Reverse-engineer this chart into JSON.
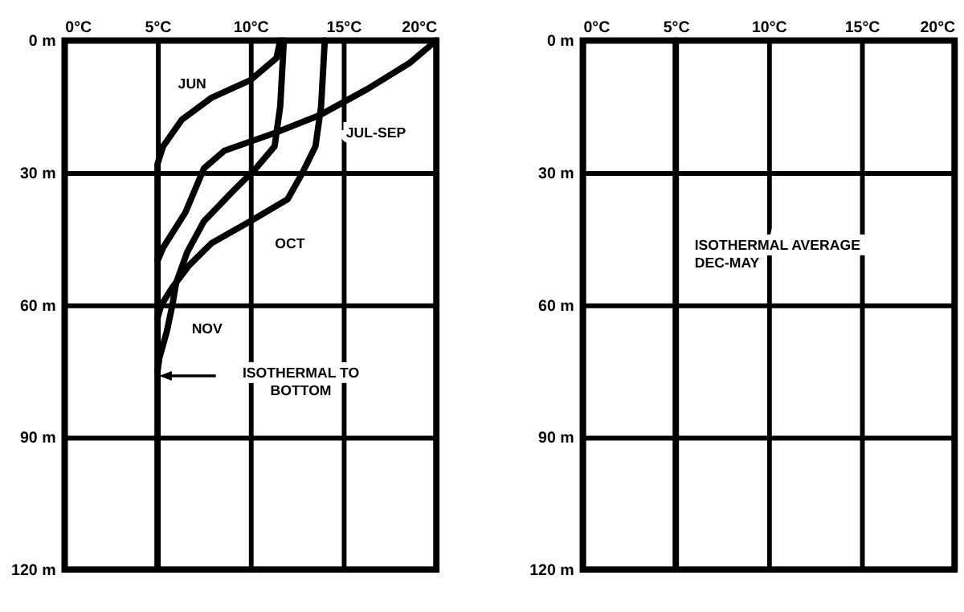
{
  "chart_data": [
    {
      "type": "line",
      "grid": true,
      "marker": "none",
      "line_style": "solid",
      "xlim": [
        0,
        20
      ],
      "ylim": [
        120,
        0
      ],
      "xticks": [
        {
          "value": 0,
          "label": "0°C"
        },
        {
          "value": 5,
          "label": "5°C"
        },
        {
          "value": 10,
          "label": "10°C"
        },
        {
          "value": 15,
          "label": "15°C"
        },
        {
          "value": 20,
          "label": "20°C"
        }
      ],
      "yticks": [
        {
          "value": 0,
          "label": "0 m"
        },
        {
          "value": 30,
          "label": "30 m"
        },
        {
          "value": 60,
          "label": "60 m"
        },
        {
          "value": 90,
          "label": "90 m"
        },
        {
          "value": 120,
          "label": "120 m"
        }
      ],
      "series": [
        {
          "name": "JUN",
          "color": "#000000",
          "x": [
            11.6,
            11.4,
            10,
            7.9,
            6.3,
            5.3,
            5,
            5
          ],
          "values": [
            0,
            4,
            9,
            13,
            18,
            24,
            28,
            120
          ]
        },
        {
          "name": "JUL-SEP",
          "color": "#000000",
          "x": [
            20,
            18.6,
            16.3,
            13.7,
            11.3,
            8.6,
            7.5,
            6.5,
            5.3,
            5
          ],
          "values": [
            0,
            5,
            11,
            17,
            21,
            25,
            29,
            39,
            47,
            50
          ]
        },
        {
          "name": "OCT",
          "color": "#000000",
          "x": [
            14,
            13.8,
            13.5,
            12.8,
            12,
            10,
            7.9,
            6.7,
            5.8,
            5.2,
            5
          ],
          "values": [
            0,
            15,
            24,
            30,
            36,
            41,
            46,
            51,
            56,
            60,
            63
          ]
        },
        {
          "name": "NOV",
          "color": "#000000",
          "x": [
            11.8,
            11.6,
            11.3,
            10.3,
            9.1,
            7.5,
            6.6,
            6,
            5.8,
            5.5,
            5.1,
            5
          ],
          "values": [
            0,
            15,
            24,
            29,
            34,
            41,
            48,
            55,
            60,
            66,
            72,
            75
          ]
        }
      ],
      "annotations": [
        "ISOTHERMAL TO\nBOTTOM"
      ]
    },
    {
      "type": "line",
      "grid": true,
      "marker": "none",
      "line_style": "solid",
      "xlim": [
        0,
        20
      ],
      "ylim": [
        120,
        0
      ],
      "xticks": [
        {
          "value": 0,
          "label": "0°C"
        },
        {
          "value": 5,
          "label": "5°C"
        },
        {
          "value": 10,
          "label": "10°C"
        },
        {
          "value": 15,
          "label": "15°C"
        },
        {
          "value": 20,
          "label": "20°C"
        }
      ],
      "yticks": [
        {
          "value": 0,
          "label": "0 m"
        },
        {
          "value": 30,
          "label": "30 m"
        },
        {
          "value": 60,
          "label": "60 m"
        },
        {
          "value": 90,
          "label": "90 m"
        },
        {
          "value": 120,
          "label": "120 m"
        }
      ],
      "series": [
        {
          "name": "ISOTHERMAL AVERAGE\nDEC-MAY",
          "color": "#000000",
          "x": [
            5,
            5
          ],
          "values": [
            0,
            120
          ]
        }
      ]
    }
  ]
}
